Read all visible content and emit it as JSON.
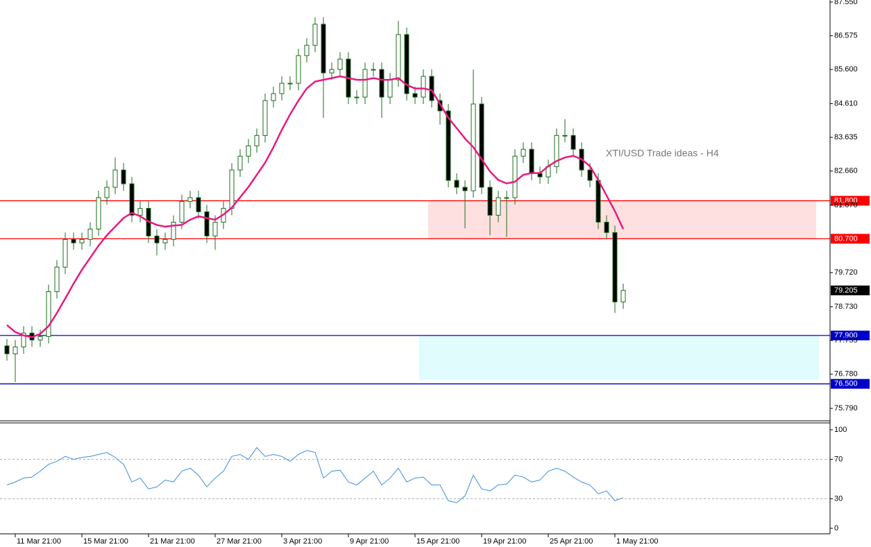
{
  "chart_data": [
    {
      "type": "candlestick",
      "annotation": "XTI/USD Trade ideas - H4",
      "categories": [
        null,
        "11 Mar 21:00",
        null,
        null,
        null,
        null,
        null,
        null,
        null,
        "15 Mar 21:00",
        null,
        null,
        null,
        null,
        null,
        null,
        null,
        "21 Mar 21:00",
        null,
        null,
        null,
        null,
        null,
        null,
        null,
        "27 Mar 21:00",
        null,
        null,
        null,
        null,
        null,
        null,
        null,
        "3 Apr 21:00",
        null,
        null,
        null,
        null,
        null,
        null,
        null,
        "9 Apr 21:00",
        null,
        null,
        null,
        null,
        null,
        null,
        null,
        "15 Apr 21:00",
        null,
        null,
        null,
        null,
        null,
        null,
        null,
        "19 Apr 21:00",
        null,
        null,
        null,
        null,
        null,
        null,
        null,
        "25 Apr 21:00",
        null,
        null,
        null,
        null,
        null,
        null,
        null,
        "1 May 21:00",
        null
      ],
      "open": [
        77.6,
        77.37,
        77.57,
        77.97,
        77.77,
        77.87,
        79.17,
        79.88,
        80.68,
        80.58,
        80.68,
        80.98,
        81.89,
        82.19,
        82.69,
        82.29,
        81.38,
        81.58,
        80.78,
        80.58,
        80.68,
        81.18,
        81.78,
        81.89,
        81.48,
        80.78,
        81.18,
        81.58,
        82.69,
        83.09,
        83.39,
        83.69,
        84.7,
        84.9,
        85.2,
        85.2,
        86.0,
        86.3,
        86.91,
        85.5,
        85.6,
        85.9,
        84.8,
        84.8,
        85.6,
        85.6,
        84.8,
        85.3,
        86.61,
        84.9,
        84.8,
        85.4,
        84.7,
        84.4,
        82.39,
        82.19,
        82.09,
        84.6,
        82.19,
        81.38,
        81.89,
        81.89,
        83.09,
        83.29,
        82.59,
        82.49,
        82.79,
        83.69,
        83.69,
        83.29,
        82.69,
        82.39,
        81.18,
        80.88,
        78.87
      ],
      "high": [
        77.8,
        77.77,
        78.17,
        78.17,
        78.07,
        79.37,
        80.08,
        80.88,
        80.88,
        80.88,
        81.18,
        82.09,
        82.39,
        83.05,
        82.89,
        82.49,
        81.78,
        81.78,
        80.98,
        80.88,
        81.38,
        81.98,
        82.09,
        82.09,
        81.68,
        81.38,
        81.78,
        82.89,
        83.29,
        83.59,
        83.89,
        84.9,
        85.1,
        85.4,
        85.4,
        86.2,
        86.5,
        87.11,
        87.11,
        85.8,
        86.1,
        86.1,
        85.0,
        85.8,
        85.8,
        85.8,
        85.5,
        87.01,
        86.81,
        85.1,
        85.6,
        85.6,
        84.9,
        84.6,
        82.59,
        82.39,
        85.6,
        84.8,
        82.39,
        82.09,
        82.09,
        83.29,
        83.49,
        83.49,
        82.79,
        82.99,
        83.89,
        84.16,
        83.89,
        83.49,
        82.89,
        82.59,
        81.38,
        81.08,
        79.4
      ],
      "low": [
        77.17,
        76.55,
        77.37,
        77.57,
        77.57,
        77.67,
        78.97,
        79.68,
        80.38,
        80.38,
        80.48,
        80.78,
        81.69,
        81.99,
        82.09,
        81.18,
        81.18,
        80.58,
        80.22,
        80.38,
        80.48,
        80.98,
        81.58,
        81.28,
        80.58,
        80.38,
        80.98,
        81.38,
        82.49,
        82.89,
        83.19,
        83.49,
        84.5,
        84.7,
        85.0,
        85.0,
        85.8,
        86.1,
        84.2,
        85.3,
        85.4,
        84.6,
        84.6,
        84.6,
        85.4,
        84.2,
        84.6,
        85.1,
        84.7,
        84.6,
        84.6,
        84.5,
        84.0,
        82.19,
        81.99,
        81.0,
        81.89,
        81.99,
        80.8,
        81.18,
        80.75,
        81.69,
        82.89,
        82.39,
        82.29,
        82.29,
        82.59,
        83.49,
        83.09,
        82.49,
        82.19,
        80.98,
        80.68,
        78.55,
        78.67
      ],
      "close": [
        77.37,
        77.57,
        77.97,
        77.77,
        77.87,
        79.17,
        79.88,
        80.68,
        80.58,
        80.68,
        80.98,
        81.89,
        82.19,
        82.69,
        82.29,
        81.38,
        81.58,
        80.78,
        80.58,
        80.68,
        81.18,
        81.78,
        81.89,
        81.48,
        80.78,
        81.18,
        81.58,
        82.69,
        83.09,
        83.39,
        83.69,
        84.7,
        84.9,
        85.2,
        85.2,
        86.0,
        86.3,
        86.91,
        85.5,
        85.6,
        85.9,
        84.8,
        84.8,
        85.6,
        85.6,
        84.8,
        85.3,
        86.61,
        84.9,
        84.8,
        85.4,
        84.7,
        84.4,
        82.39,
        82.19,
        82.09,
        84.6,
        82.19,
        81.38,
        81.89,
        81.89,
        83.09,
        83.29,
        82.59,
        82.49,
        82.79,
        83.69,
        83.69,
        83.29,
        82.69,
        82.39,
        81.18,
        80.88,
        78.87,
        79.205
      ],
      "up_color": "#ffffff",
      "down_color": "#000000",
      "wick_color": "#1e6b1e",
      "ma": {
        "color": "#e8197f",
        "values": [
          78.2,
          78.0,
          77.9,
          77.85,
          77.95,
          78.17,
          78.55,
          78.97,
          79.4,
          79.8,
          80.15,
          80.5,
          80.8,
          81.05,
          81.3,
          81.45,
          81.35,
          81.2,
          81.1,
          81.05,
          81.08,
          81.1,
          81.25,
          81.35,
          81.3,
          81.25,
          81.4,
          81.6,
          81.9,
          82.2,
          82.55,
          82.9,
          83.35,
          83.85,
          84.3,
          84.7,
          85.05,
          85.25,
          85.3,
          85.35,
          85.4,
          85.35,
          85.3,
          85.3,
          85.35,
          85.3,
          85.3,
          85.35,
          85.15,
          85.05,
          85.05,
          85.0,
          84.6,
          84.2,
          83.9,
          83.6,
          83.35,
          83.0,
          82.65,
          82.4,
          82.3,
          82.35,
          82.55,
          82.6,
          82.6,
          82.8,
          82.95,
          83.05,
          83.1,
          83.0,
          82.8,
          82.4,
          81.95,
          81.5,
          80.98
        ]
      },
      "levels": [
        {
          "value": 81.8,
          "label": "81.800",
          "color": "#ff0000"
        },
        {
          "value": 80.7,
          "label": "80.700",
          "color": "#ff0000"
        },
        {
          "value": 77.9,
          "label": "77.900",
          "color": "#0000cc"
        },
        {
          "value": 76.5,
          "label": "76.500",
          "color": "#0000cc"
        }
      ],
      "zones": [
        {
          "from": 80.7,
          "to": 81.8,
          "color": "#ffe0e0"
        },
        {
          "from": 76.62,
          "to": 77.9,
          "color": "#e0fcfc"
        }
      ],
      "current_price": {
        "value": 79.205,
        "label": "79.205"
      },
      "ylim": [
        75.43,
        87.61
      ],
      "yticks": [
        {
          "value": 87.55,
          "label": "87.550"
        },
        {
          "value": 86.575,
          "label": "86.575"
        },
        {
          "value": 85.6,
          "label": "85.600"
        },
        {
          "value": 84.61,
          "label": "84.610"
        },
        {
          "value": 83.635,
          "label": "83.635"
        },
        {
          "value": 82.66,
          "label": "82.660"
        },
        {
          "value": 81.67,
          "label": "81.670"
        },
        {
          "value": 79.72,
          "label": "79.720"
        },
        {
          "value": 78.73,
          "label": "78.730"
        },
        {
          "value": 77.755,
          "label": "77.755"
        },
        {
          "value": 76.78,
          "label": "76.780"
        },
        {
          "value": 75.79,
          "label": "75.790"
        }
      ]
    },
    {
      "type": "line",
      "color": "#3a8ee0",
      "values": [
        44,
        47,
        51,
        52,
        58,
        65,
        68,
        73,
        70,
        72,
        73,
        75,
        77,
        72,
        65,
        47,
        51,
        40,
        42,
        49,
        47,
        58,
        61,
        54,
        42,
        51,
        58,
        73,
        75,
        70,
        82,
        73,
        75,
        73,
        68,
        75,
        79,
        77,
        51,
        58,
        59,
        47,
        44,
        51,
        58,
        44,
        51,
        61,
        47,
        51,
        52,
        44,
        44,
        28,
        26,
        33,
        54,
        40,
        38,
        44,
        45,
        54,
        52,
        47,
        49,
        58,
        61,
        58,
        52,
        47,
        44,
        35,
        38,
        28,
        31
      ],
      "levels": [
        70,
        30
      ],
      "ylim": [
        -5.6,
        105.6
      ],
      "yticks": [
        100,
        70,
        30,
        0
      ]
    }
  ]
}
